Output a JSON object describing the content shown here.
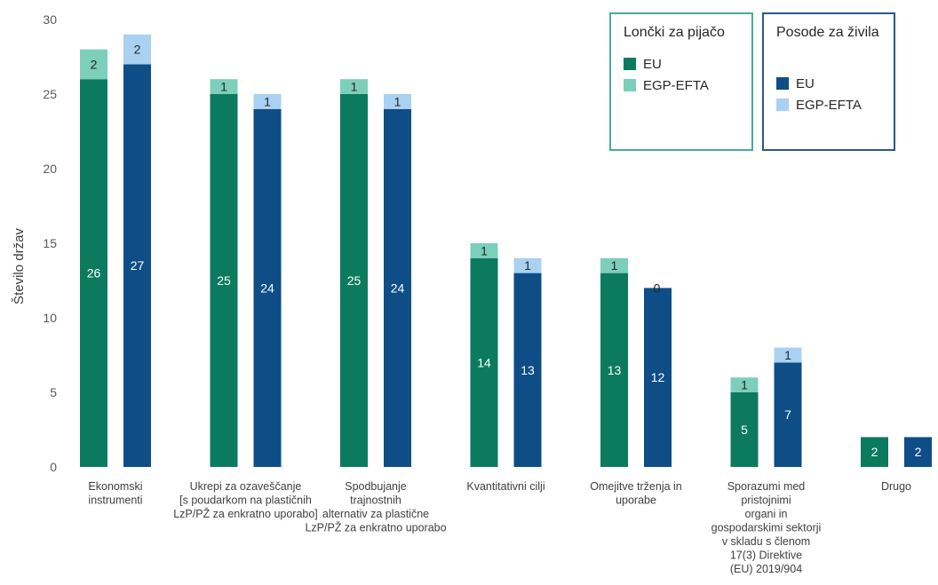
{
  "chart_data": {
    "type": "bar",
    "stacked": true,
    "ylabel": "Število držav",
    "ylim": [
      0,
      30
    ],
    "yticks": [
      0,
      5,
      10,
      15,
      20,
      25,
      30
    ],
    "categories": [
      [
        "Ekonomski",
        "instrumenti"
      ],
      [
        "Ukrepi za ozaveščanje",
        "[s poudarkom na plastičnih",
        "LzP/PŽ za enkratno uporabo]"
      ],
      [
        "Spodbujanje",
        "trajnostnih",
        "alternativ za plastične",
        "LzP/PŽ za enkratno uporabo"
      ],
      [
        "Kvantitativni cilji"
      ],
      [
        "Omejitve trženja in",
        "uporabe"
      ],
      [
        "Sporazumi med",
        "pristojnimi",
        "organi in",
        "gospodarskimi sektorji",
        "v skladu s členom",
        "17(3) Direktive",
        "(EU) 2019/904"
      ],
      [
        "Drugo"
      ]
    ],
    "groups": [
      {
        "name": "Lončki za pijačo",
        "series": [
          {
            "name": "EU",
            "color": "#0b7a5e",
            "label_color": "#ffffff",
            "values": [
              26,
              25,
              25,
              14,
              13,
              5,
              2
            ]
          },
          {
            "name": "EGP-EFTA",
            "color": "#7ccfbb",
            "label_color": "#262626",
            "values": [
              2,
              1,
              1,
              1,
              1,
              1,
              0
            ]
          }
        ]
      },
      {
        "name": "Posode za živila",
        "series": [
          {
            "name": "EU",
            "color": "#0e4d86",
            "label_color": "#ffffff",
            "values": [
              27,
              24,
              24,
              13,
              12,
              7,
              2
            ]
          },
          {
            "name": "EGP-EFTA",
            "color": "#a9d1f2",
            "label_color": "#262626",
            "values": [
              2,
              1,
              1,
              1,
              0,
              1,
              0
            ]
          }
        ]
      }
    ],
    "zero_labels_shown": [
      [
        1,
        4
      ]
    ],
    "legend_placement": "top-right",
    "grid": false
  },
  "legends": {
    "cups": {
      "title": "Lončki za pijačo",
      "border_color": "#4aab98",
      "items": [
        {
          "label": "EU",
          "color": "#0b7a5e"
        },
        {
          "label": "EGP-EFTA",
          "color": "#7ccfbb"
        }
      ]
    },
    "containers": {
      "title": "Posode za živila",
      "border_color": "#2a5a8c",
      "items": [
        {
          "label": "EU",
          "color": "#0e4d86"
        },
        {
          "label": "EGP-EFTA",
          "color": "#a9d1f2"
        }
      ]
    }
  }
}
